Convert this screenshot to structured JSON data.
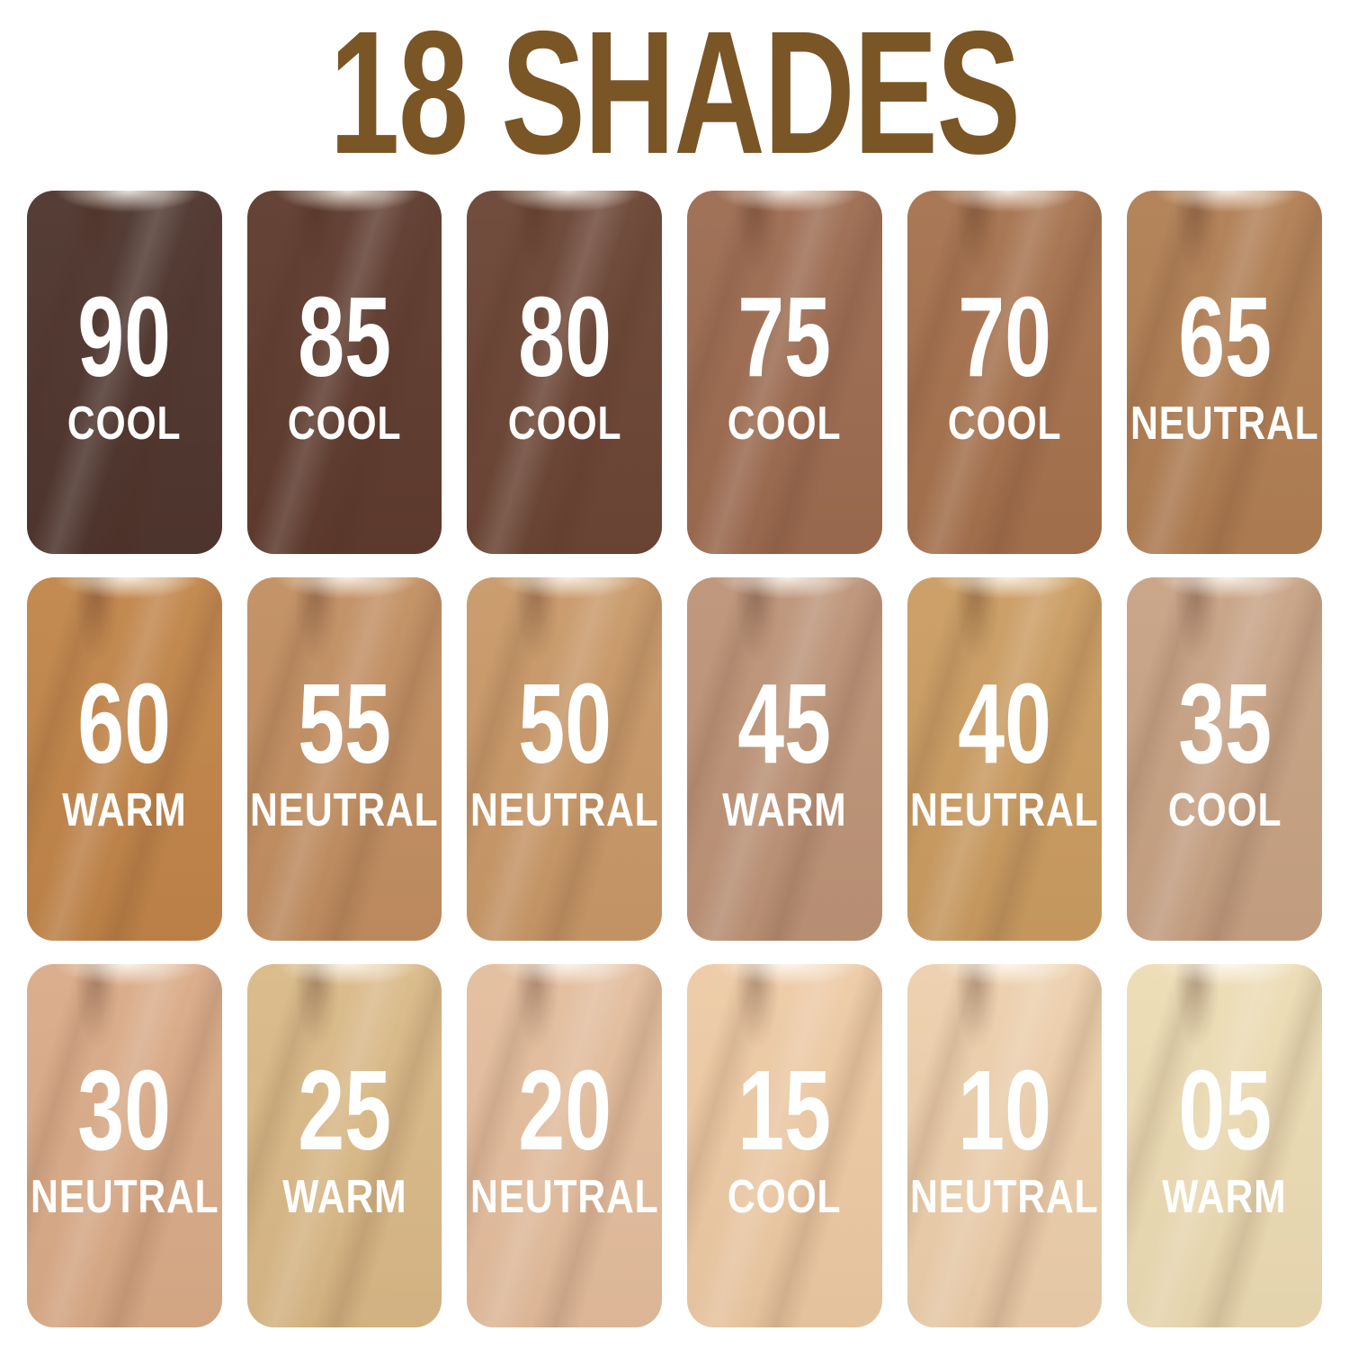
{
  "title": "18 SHADES",
  "title_color": "#7a5526",
  "background_color": "#ffffff",
  "card_text_color": "#ffffff",
  "shades": [
    {
      "number": "90",
      "undertone": "COOL",
      "color": "#4d342d"
    },
    {
      "number": "85",
      "undertone": "COOL",
      "color": "#5d3a2d"
    },
    {
      "number": "80",
      "undertone": "COOL",
      "color": "#6a4434"
    },
    {
      "number": "75",
      "undertone": "COOL",
      "color": "#9c6b50"
    },
    {
      "number": "70",
      "undertone": "COOL",
      "color": "#a5714d"
    },
    {
      "number": "65",
      "undertone": "NEUTRAL",
      "color": "#b07e53"
    },
    {
      "number": "60",
      "undertone": "WARM",
      "color": "#c08449"
    },
    {
      "number": "55",
      "undertone": "NEUTRAL",
      "color": "#c18e61"
    },
    {
      "number": "50",
      "undertone": "NEUTRAL",
      "color": "#c89868"
    },
    {
      "number": "45",
      "undertone": "WARM",
      "color": "#bc9377"
    },
    {
      "number": "40",
      "undertone": "NEUTRAL",
      "color": "#ca9c61"
    },
    {
      "number": "35",
      "undertone": "COOL",
      "color": "#c7a284"
    },
    {
      "number": "30",
      "undertone": "NEUTRAL",
      "color": "#d9ab88"
    },
    {
      "number": "25",
      "undertone": "WARM",
      "color": "#d9b987"
    },
    {
      "number": "20",
      "undertone": "NEUTRAL",
      "color": "#e3bd9d"
    },
    {
      "number": "15",
      "undertone": "COOL",
      "color": "#edcaa5"
    },
    {
      "number": "10",
      "undertone": "NEUTRAL",
      "color": "#eccfac"
    },
    {
      "number": "05",
      "undertone": "WARM",
      "color": "#ecdcb4"
    }
  ]
}
